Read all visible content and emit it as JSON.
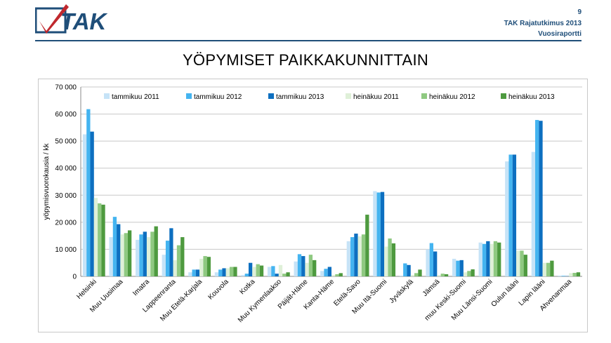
{
  "header": {
    "page_number": "9",
    "report_title": "TAK Rajatutkimus 2013",
    "report_subtitle": "Vuosiraportti",
    "logo_text": "TAK",
    "brand_color": "#1f4e79",
    "check_color": "#c0282d"
  },
  "chart_data": {
    "type": "bar",
    "title": "YÖPYMISET PAIKKAKUNNITTAIN",
    "ylabel": "yöpymisvuorokausia / kk",
    "xlabel": "",
    "ylim": [
      0,
      70000
    ],
    "yticks": [
      "0",
      "10 000",
      "20 000",
      "30 000",
      "40 000",
      "50 000",
      "60 000",
      "70 000"
    ],
    "grid": true,
    "legend_position": "top",
    "categories": [
      "Helsinki",
      "Muu Uusimaa",
      "Imatra",
      "Lappeenranta",
      "Muu Etelä-Karjala",
      "Kouvola",
      "Kotka",
      "Muu Kymenlaakso",
      "Päijät-Häme",
      "Kanta-Häme",
      "Etelä-Savo",
      "Muu Itä-Suomi",
      "Jyväskylä",
      "Jämsä",
      "muu Keski-Suomi",
      "Muu Länsi-Suomi",
      "Oulun lääni",
      "Lapin lääni",
      "Ahvenanmaa"
    ],
    "series": [
      {
        "name": "tammikuu 2011",
        "color": "#c6e3f7",
        "values": [
          52500,
          14500,
          13500,
          8000,
          1500,
          1500,
          500,
          3500,
          5500,
          2000,
          13000,
          31500,
          300,
          10000,
          6500,
          12500,
          42500,
          46000,
          300
        ]
      },
      {
        "name": "tammikuu 2012",
        "color": "#44b4f0",
        "values": [
          61800,
          22000,
          15500,
          13200,
          2500,
          2500,
          1000,
          3800,
          8200,
          2800,
          14500,
          31000,
          4800,
          12300,
          5800,
          12000,
          45000,
          57800,
          200
        ]
      },
      {
        "name": "tammikuu 2013",
        "color": "#0d6fc0",
        "values": [
          53500,
          19300,
          16500,
          17800,
          2500,
          3000,
          5000,
          1000,
          7500,
          3500,
          15800,
          31200,
          4200,
          9200,
          6000,
          13000,
          45000,
          57500,
          100
        ]
      },
      {
        "name": "heinäkuu 2011",
        "color": "#dff0d8",
        "values": [
          29000,
          15500,
          14500,
          6000,
          6500,
          3000,
          3500,
          4200,
          5000,
          500,
          14800,
          11000,
          500,
          500,
          1500,
          12000,
          9500,
          5000,
          1200
        ]
      },
      {
        "name": "heinäkuu 2012",
        "color": "#8fc981",
        "values": [
          27000,
          16000,
          16500,
          11500,
          7500,
          3500,
          4500,
          1000,
          8000,
          800,
          15500,
          14000,
          1200,
          1000,
          2000,
          13000,
          9500,
          5000,
          1300
        ]
      },
      {
        "name": "heinäkuu 2013",
        "color": "#4e9a3f",
        "values": [
          26500,
          17000,
          18500,
          14500,
          7200,
          3500,
          4000,
          1500,
          6000,
          1200,
          22800,
          12200,
          2500,
          800,
          2600,
          12500,
          8000,
          5800,
          1500
        ]
      }
    ]
  }
}
